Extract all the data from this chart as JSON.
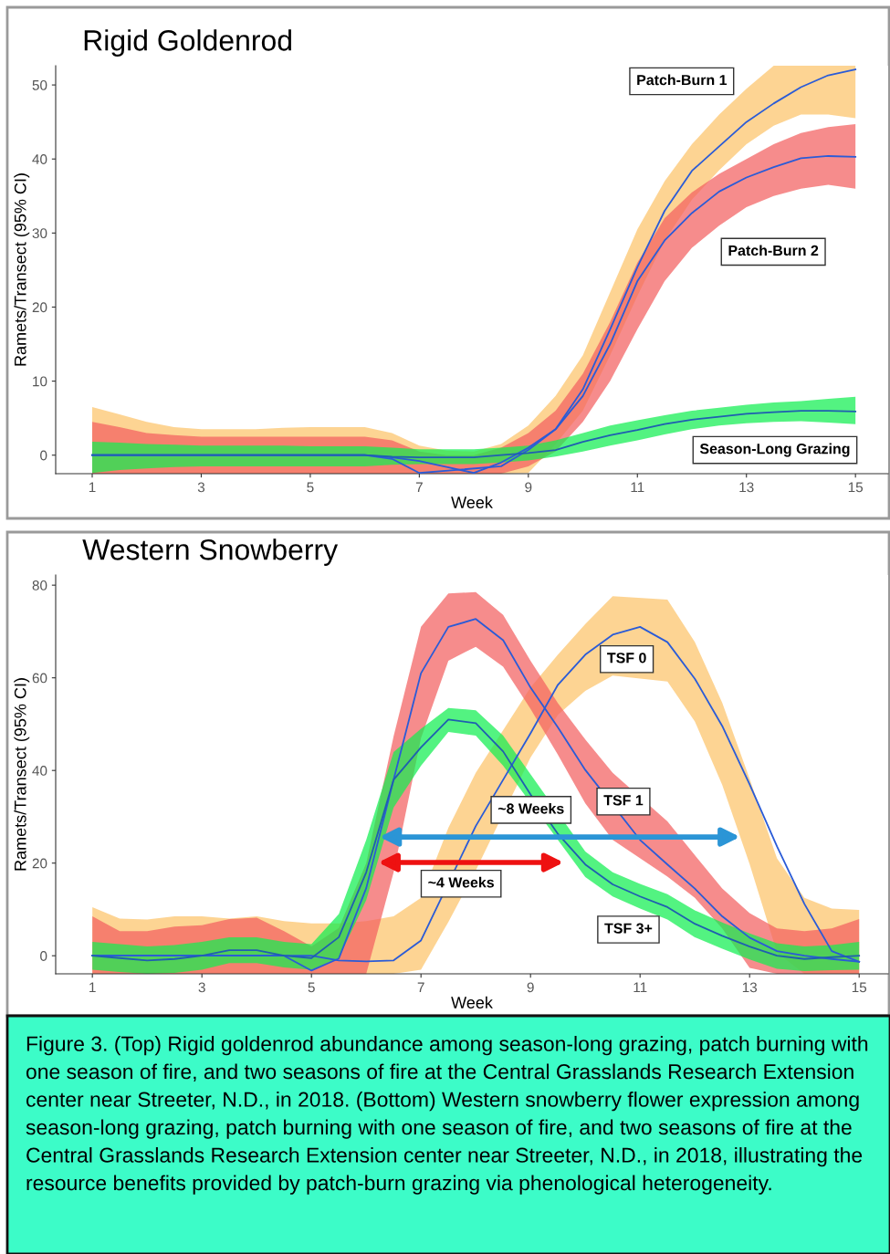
{
  "chart_data": [
    {
      "type": "line",
      "title": "Rigid Goldenrod",
      "xlabel": "Week",
      "ylabel": "Ramets/Transect (95% CI)",
      "line_style": "solid",
      "marker": "none",
      "colors": [
        "#fcc46a",
        "#f26060",
        "#10ee50"
      ],
      "xlim": [
        0.33,
        15.6
      ],
      "ylim": [
        -2.5,
        52.6
      ],
      "xticks": [
        1,
        3,
        5,
        7,
        9,
        11,
        13,
        15
      ],
      "yticks": [
        0,
        10,
        20,
        30,
        40,
        50
      ],
      "x": [
        1,
        1.5,
        2,
        2.5,
        3,
        3.5,
        4,
        4.5,
        5,
        5.5,
        6,
        6.5,
        7,
        7.5,
        8,
        8.5,
        9,
        9.5,
        10,
        10.5,
        11,
        11.5,
        12,
        12.5,
        13,
        13.5,
        14,
        14.5,
        15
      ],
      "series": [
        {
          "color": "#2a5bd7",
          "values": [
            0,
            0,
            0,
            0,
            0,
            0,
            0,
            0,
            0,
            0,
            0,
            -0.5,
            -2.4,
            null,
            null,
            -1.5,
            0.7,
            3.5,
            8.9,
            17,
            25.4,
            33,
            38.4,
            41.7,
            45,
            47.5,
            49.7,
            51.3,
            52.1
          ],
          "upper": [
            6.5,
            5.5,
            4.5,
            3.8,
            3.5,
            3.5,
            3.5,
            3.7,
            3.8,
            3.8,
            3.8,
            3,
            1.3,
            0.6,
            0.5,
            1.5,
            4,
            8,
            13.5,
            22,
            30.5,
            37,
            42,
            46,
            49.5,
            52.6,
            52.6,
            52.6,
            52.6
          ],
          "lower": [
            -2.5,
            -2.5,
            -2.5,
            -2.5,
            -2.5,
            -2.5,
            -2.5,
            -2.5,
            -2.5,
            -2.5,
            -2.5,
            -2.5,
            -2.5,
            -2.5,
            -2.5,
            -2.5,
            -2.4,
            1.5,
            6,
            13.5,
            21.5,
            29,
            34.5,
            38.5,
            42,
            44.5,
            46,
            46,
            45.5
          ]
        },
        {
          "color": "#2a5bd7",
          "values": [
            0,
            0,
            0,
            0,
            0,
            0,
            0,
            0,
            0,
            0,
            0,
            -0.3,
            -0.8,
            -1.6,
            -2.4,
            -1,
            1,
            3.5,
            8,
            15,
            23.5,
            29,
            32.7,
            35.6,
            37.5,
            38.9,
            40.1,
            40.4,
            40.3
          ],
          "upper": [
            4.5,
            3.8,
            3,
            2.7,
            2.5,
            2.5,
            2.5,
            2.5,
            2.5,
            2.5,
            2.5,
            2,
            0.5,
            0,
            0,
            1,
            3,
            6,
            11,
            18,
            26,
            32,
            35.5,
            38,
            40,
            42,
            43.5,
            44.3,
            44.7
          ],
          "lower": [
            -2.5,
            -2.5,
            -2.5,
            -2.5,
            -2.5,
            -2.5,
            -2.5,
            -2.5,
            -2.5,
            -2.5,
            -2.5,
            -2.5,
            -2.5,
            -2.5,
            -2.5,
            -2.5,
            -1.5,
            0.5,
            4.5,
            10,
            17,
            23.5,
            28,
            31,
            33.5,
            35,
            36,
            36.5,
            36
          ]
        },
        {
          "color": "#1f5fb0",
          "values": [
            0,
            0,
            0,
            0,
            0,
            0,
            0,
            0,
            0,
            0,
            0,
            -0.2,
            -0.3,
            -0.3,
            -0.3,
            0,
            0.3,
            0.7,
            1.8,
            2.7,
            3.4,
            4.2,
            4.8,
            5.2,
            5.6,
            5.8,
            6,
            6,
            5.9
          ],
          "upper": [
            1.8,
            1.7,
            1.5,
            1.4,
            1.3,
            1.3,
            1.3,
            1.3,
            1.2,
            1.2,
            1.2,
            1,
            0.8,
            0.8,
            0.8,
            1,
            1.3,
            2,
            3,
            4,
            4.7,
            5.4,
            6,
            6.4,
            6.8,
            7.1,
            7.3,
            7.6,
            7.9
          ],
          "lower": [
            -2.4,
            -2,
            -1.8,
            -1.6,
            -1.5,
            -1.5,
            -1.5,
            -1.5,
            -1.5,
            -1.5,
            -1.5,
            -1.3,
            -1.2,
            -1.2,
            -1.2,
            -1,
            -0.7,
            -0.2,
            0.5,
            1.3,
            2,
            2.8,
            3.5,
            4,
            4.3,
            4.5,
            4.6,
            4.4,
            4.2
          ]
        }
      ],
      "annotations": [
        "Patch-Burn 1",
        "Patch-Burn 2",
        "Season-Long Grazing"
      ]
    },
    {
      "type": "line",
      "title": "Western Snowberry",
      "xlabel": "Week",
      "ylabel": "Ramets/Transect (95% CI)",
      "line_style": "solid",
      "marker": "none",
      "colors": [
        "#fcc46a",
        "#f26060",
        "#10ee50"
      ],
      "xlim": [
        0.33,
        15.53
      ],
      "ylim": [
        -3.9,
        82.2
      ],
      "xticks": [
        1,
        3,
        5,
        7,
        9,
        11,
        13,
        15
      ],
      "yticks": [
        0,
        20,
        40,
        60,
        80
      ],
      "x": [
        1,
        1.5,
        2,
        2.5,
        3,
        3.5,
        4,
        4.5,
        5,
        5.5,
        6,
        6.5,
        7,
        7.5,
        8,
        8.5,
        9,
        9.5,
        10,
        10.5,
        11,
        11.5,
        12,
        12.5,
        13,
        13.5,
        14,
        14.5,
        15
      ],
      "series": [
        {
          "color": "#2a5bd7",
          "values": [
            0,
            0,
            0,
            0,
            0,
            0,
            0,
            0,
            0,
            -1,
            -1.2,
            -1,
            3.3,
            null,
            28,
            38,
            48,
            58.5,
            65,
            69.3,
            71,
            67.7,
            59.8,
            49.6,
            37,
            23.6,
            11.2,
            1,
            -1.3
          ],
          "upper": [
            10.5,
            8,
            7.8,
            8.5,
            8.5,
            8,
            8.5,
            7.5,
            7,
            7,
            7.5,
            8.5,
            12.5,
            27.6,
            39.5,
            null,
            57.9,
            65,
            71.6,
            77.6,
            null,
            76.9,
            67.7,
            54.6,
            38.2,
            21,
            12.5,
            10.2,
            9.9
          ],
          "lower": [
            -3.9,
            -3.9,
            -3.9,
            -3.9,
            -3.9,
            -3.9,
            -3.9,
            -3.9,
            -3.9,
            -3.9,
            -3.9,
            -3.9,
            -3,
            7.3,
            18.4,
            null,
            42.8,
            52,
            57.2,
            60.5,
            null,
            59.2,
            50.6,
            36.9,
            19.8,
            0.7,
            -3.9,
            -3.9,
            -3.9
          ]
        },
        {
          "color": "#2a5bd7",
          "values": [
            0,
            0,
            0,
            0,
            0,
            0,
            0,
            0,
            -3.2,
            -0.6,
            14.6,
            38,
            61,
            71,
            72.7,
            68.1,
            57.9,
            49.3,
            40.1,
            null,
            25,
            19.7,
            14.5,
            8.5,
            3.9,
            1,
            0,
            -0.7,
            -1.3
          ],
          "upper": [
            8.5,
            5.3,
            5.3,
            6.3,
            6.6,
            7.9,
            8.2,
            5.3,
            2,
            6,
            20,
            47.4,
            71,
            78.2,
            78.5,
            73.6,
            63.7,
            54.5,
            46.7,
            39.5,
            null,
            29,
            21.7,
            14.5,
            9.2,
            5.9,
            5.3,
            5.9,
            7.9
          ],
          "lower": [
            -3.9,
            -3.9,
            -3.9,
            -3.9,
            -3.9,
            -3.9,
            -3.9,
            -3.9,
            -3.9,
            -3.9,
            -3.9,
            18,
            47,
            63.7,
            66.7,
            62.4,
            53.3,
            43.4,
            32.9,
            25,
            null,
            17.1,
            12.5,
            5.9,
            -2.6,
            -3.9,
            -3.9,
            -3.9,
            -3.9
          ]
        },
        {
          "color": "#1f5fb0",
          "values": [
            0,
            -0.5,
            -1,
            -0.7,
            0,
            1.2,
            1.2,
            0,
            -0.5,
            4,
            18,
            38,
            45,
            51,
            50.2,
            44.1,
            34.8,
            26.3,
            19.7,
            15.4,
            12.8,
            10.5,
            6.9,
            4.3,
            2,
            0,
            -0.7,
            -0.3,
            0
          ],
          "upper": [
            3,
            2.5,
            2,
            2.3,
            3,
            4,
            4,
            3,
            2.5,
            9,
            25,
            44,
            49,
            53.5,
            53,
            47.5,
            null,
            null,
            22.5,
            18,
            15.5,
            13.3,
            9.8,
            7.2,
            4.8,
            2.7,
            2,
            2.3,
            3
          ],
          "lower": [
            -3,
            -3.5,
            -3.9,
            -3.7,
            -3,
            -1.6,
            -1.6,
            -2.5,
            -3,
            -0.5,
            12,
            32,
            41,
            48.3,
            47.5,
            41,
            null,
            null,
            17,
            12.8,
            10.2,
            7.8,
            4,
            1.5,
            -0.8,
            -2.8,
            -3.3,
            -3.1,
            -3
          ]
        }
      ],
      "annotations": [
        "TSF 0",
        "TSF 1",
        "TSF 3+",
        "~8 Weeks",
        "~4 Weeks",
        "Figure 3. (Top) Rigid goldenrod abundance among season-long grazing, patch burning with one season of fire, and two seasons of fire at the Central Grasslands Research Extension center near Streeter, N.D., in 2018. (Bottom) Western snowberry flower expression among season-long grazing, patch burning with one season of fire, and two seasons of fire at the Central Grasslands Research Extension center near Streeter, N.D., in 2018, illustrating the resource benefits provided by patch-burn grazing via phenological heterogeneity."
      ]
    }
  ]
}
